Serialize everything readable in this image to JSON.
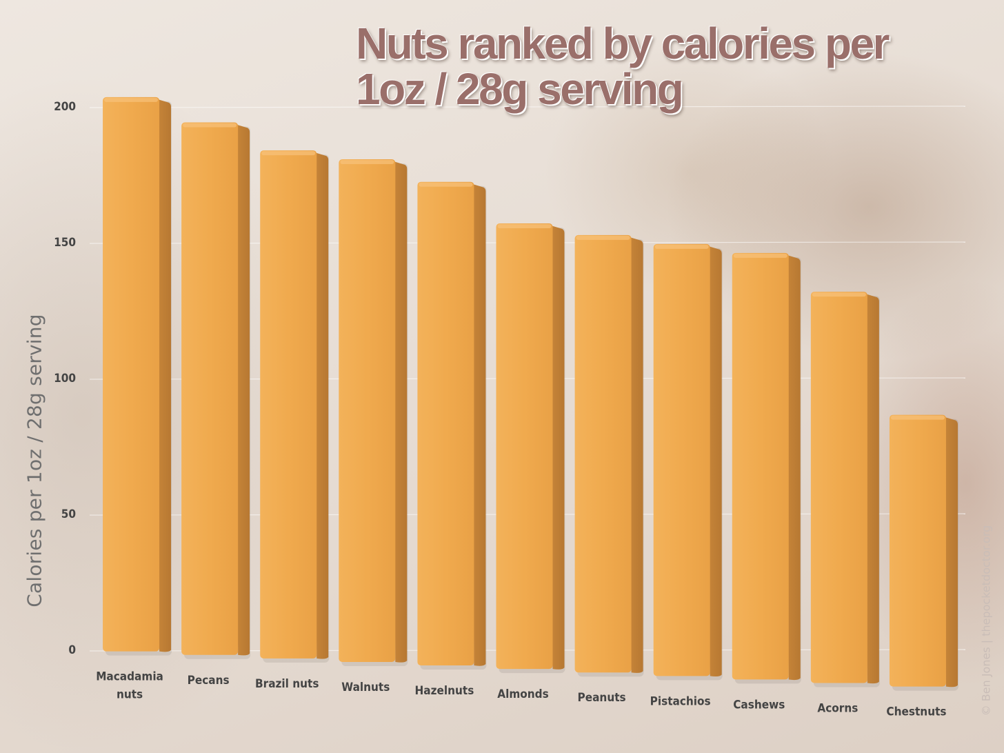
{
  "chart_data": {
    "type": "bar",
    "title": "Nuts ranked by calories per 1oz / 28g serving",
    "ylabel": "Calories per 1oz / 28g serving",
    "xlabel": "",
    "ylim": [
      0,
      200
    ],
    "yticks": [
      0,
      50,
      100,
      150,
      200
    ],
    "categories": [
      "Macadamia nuts",
      "Pecans",
      "Brazil nuts",
      "Walnuts",
      "Hazelnuts",
      "Almonds",
      "Peanuts",
      "Pistachios",
      "Cashews",
      "Acorns",
      "Chestnuts"
    ],
    "values": [
      204,
      196,
      187,
      185,
      178,
      164,
      161,
      159,
      157,
      144,
      100
    ],
    "bar_color": "#f0a94c",
    "grid": true,
    "legend": "none"
  },
  "watermark": "© Ben Jones | thepocketdoctor.org"
}
